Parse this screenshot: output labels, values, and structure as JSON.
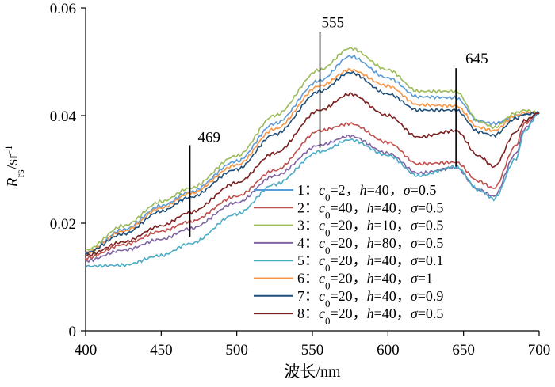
{
  "chart_data": {
    "type": "line",
    "xlabel": "波长/nm",
    "ylabel": {
      "main": "R",
      "sub": "rs",
      "unit": "/sr",
      "sup": "-1"
    },
    "xlim": [
      400,
      700
    ],
    "ylim": [
      0,
      0.06
    ],
    "xticks": [
      400,
      450,
      500,
      550,
      600,
      650,
      700
    ],
    "yticks": [
      0,
      0.02,
      0.04,
      0.06
    ],
    "ytick_labels": [
      "0",
      "0.02",
      "0.04",
      "0.06"
    ],
    "grid": false,
    "legend_position": "bottom-right",
    "markers": [
      {
        "label": "469",
        "x": 469,
        "y_from": 0.0175,
        "y_to": 0.0345
      },
      {
        "label": "555",
        "x": 555,
        "y_from": 0.034,
        "y_to": 0.0555
      },
      {
        "label": "645",
        "x": 645,
        "y_from": 0.0305,
        "y_to": 0.0488
      }
    ],
    "series": [
      {
        "name": "1",
        "legend": {
          "num": "1",
          "c0": "2",
          "h": "40",
          "sigma": "0.5"
        },
        "color": "#5b9bd5",
        "x": [
          400,
          425,
          450,
          469,
          500,
          525,
          555,
          575,
          600,
          620,
          645,
          660,
          670,
          685,
          690,
          700
        ],
        "y": [
          0.0145,
          0.0188,
          0.0232,
          0.0258,
          0.0315,
          0.0385,
          0.0465,
          0.051,
          0.047,
          0.0435,
          0.0433,
          0.039,
          0.0385,
          0.04,
          0.0402,
          0.0405
        ]
      },
      {
        "name": "2",
        "legend": {
          "num": "2",
          "c0": "40",
          "h": "40",
          "sigma": "0.5"
        },
        "color": "#c0504d",
        "x": [
          400,
          425,
          450,
          469,
          500,
          525,
          555,
          575,
          600,
          620,
          645,
          660,
          670,
          685,
          690,
          700
        ],
        "y": [
          0.0135,
          0.016,
          0.0185,
          0.0203,
          0.025,
          0.0298,
          0.0372,
          0.0385,
          0.035,
          0.031,
          0.0313,
          0.0278,
          0.0265,
          0.0345,
          0.0385,
          0.0405
        ]
      },
      {
        "name": "3",
        "legend": {
          "num": "3",
          "c0": "20",
          "h": "10",
          "sigma": "0.5"
        },
        "color": "#9bbb59",
        "x": [
          400,
          425,
          450,
          469,
          500,
          525,
          555,
          575,
          600,
          620,
          645,
          660,
          670,
          685,
          690,
          700
        ],
        "y": [
          0.015,
          0.0195,
          0.024,
          0.0265,
          0.0325,
          0.04,
          0.0485,
          0.0525,
          0.0485,
          0.0445,
          0.0445,
          0.039,
          0.0378,
          0.0405,
          0.041,
          0.0405
        ]
      },
      {
        "name": "4",
        "legend": {
          "num": "4",
          "c0": "20",
          "h": "80",
          "sigma": "0.5"
        },
        "color": "#8064a2",
        "x": [
          400,
          425,
          450,
          469,
          500,
          525,
          555,
          575,
          600,
          620,
          645,
          660,
          670,
          685,
          690,
          700
        ],
        "y": [
          0.013,
          0.015,
          0.017,
          0.019,
          0.0238,
          0.0288,
          0.0345,
          0.0362,
          0.033,
          0.0293,
          0.0303,
          0.0262,
          0.025,
          0.033,
          0.0375,
          0.0405
        ]
      },
      {
        "name": "5",
        "legend": {
          "num": "5",
          "c0": "20",
          "h": "40",
          "sigma": "0.1"
        },
        "color": "#4bacc6",
        "x": [
          400,
          425,
          450,
          469,
          500,
          525,
          555,
          575,
          600,
          620,
          645,
          660,
          670,
          685,
          690,
          700
        ],
        "y": [
          0.012,
          0.0122,
          0.014,
          0.0162,
          0.0217,
          0.0272,
          0.0333,
          0.0355,
          0.0326,
          0.0288,
          0.0305,
          0.0262,
          0.0245,
          0.032,
          0.037,
          0.0405
        ]
      },
      {
        "name": "6",
        "legend": {
          "num": "6",
          "c0": "20",
          "h": "40",
          "sigma": "1"
        },
        "color": "#f79646",
        "x": [
          400,
          425,
          450,
          469,
          500,
          525,
          555,
          575,
          600,
          620,
          645,
          660,
          670,
          685,
          690,
          700
        ],
        "y": [
          0.0145,
          0.0185,
          0.0228,
          0.0255,
          0.0308,
          0.0375,
          0.0455,
          0.0485,
          0.0455,
          0.042,
          0.0418,
          0.0378,
          0.0372,
          0.04,
          0.0405,
          0.0405
        ]
      },
      {
        "name": "7",
        "legend": {
          "num": "7",
          "c0": "20",
          "h": "40",
          "sigma": "0.9"
        },
        "color": "#1f4e79",
        "x": [
          400,
          425,
          450,
          469,
          500,
          525,
          555,
          575,
          600,
          620,
          645,
          660,
          670,
          685,
          690,
          700
        ],
        "y": [
          0.0145,
          0.018,
          0.0222,
          0.0248,
          0.03,
          0.0365,
          0.0445,
          0.048,
          0.044,
          0.041,
          0.041,
          0.037,
          0.0363,
          0.0395,
          0.0402,
          0.0405
        ]
      },
      {
        "name": "8",
        "legend": {
          "num": "8",
          "c0": "20",
          "h": "40",
          "sigma": "0.5"
        },
        "color": "#7b1f1f",
        "x": [
          400,
          425,
          450,
          469,
          500,
          525,
          555,
          575,
          600,
          620,
          645,
          660,
          670,
          685,
          690,
          700
        ],
        "y": [
          0.014,
          0.0165,
          0.0195,
          0.022,
          0.0275,
          0.033,
          0.041,
          0.044,
          0.04,
          0.036,
          0.0372,
          0.0325,
          0.0305,
          0.037,
          0.039,
          0.0405
        ]
      }
    ]
  }
}
